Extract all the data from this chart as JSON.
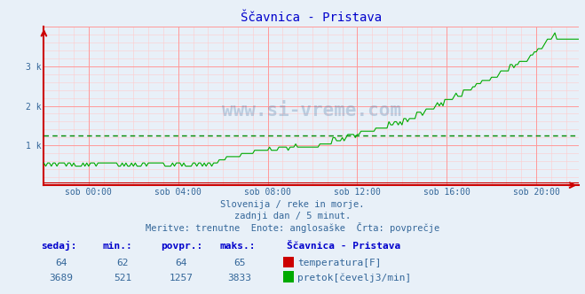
{
  "title": "Ščavnica - Pristava",
  "bg_color": "#e8f0f8",
  "plot_bg_color": "#e8f0f8",
  "title_color": "#0000cc",
  "grid_color_major": "#ff9999",
  "grid_color_minor": "#ffcccc",
  "avg_line_color": "#008800",
  "temp_line_color": "#cc0000",
  "flow_line_color": "#00aa00",
  "axis_color": "#cc0000",
  "tick_color": "#336699",
  "text_color": "#336699",
  "watermark_color": "#336699",
  "ylim": [
    0,
    4000
  ],
  "xlim": [
    0,
    287
  ],
  "xtick_positions": [
    24,
    72,
    120,
    168,
    216,
    264
  ],
  "xtick_labels": [
    "sob 00:00",
    "sob 04:00",
    "sob 08:00",
    "sob 12:00",
    "sob 16:00",
    "sob 20:00"
  ],
  "avg_flow": 1257,
  "subtitle1": "Slovenija / reke in morje.",
  "subtitle2": "zadnji dan / 5 minut.",
  "subtitle3": "Meritve: trenutne  Enote: anglosaške  Črta: povprečje",
  "legend_title": "Ščavnica - Pristava",
  "legend_items": [
    {
      "label": "temperatura[F]",
      "color": "#cc0000"
    },
    {
      "label": "pretok[čevelj3/min]",
      "color": "#00aa00"
    }
  ],
  "table_headers": [
    "sedaj:",
    "min.:",
    "povpr.:",
    "maks.:"
  ],
  "table_row1": [
    "64",
    "62",
    "64",
    "65"
  ],
  "table_row2": [
    "3689",
    "521",
    "1257",
    "3833"
  ],
  "watermark": "www.si-vreme.com"
}
